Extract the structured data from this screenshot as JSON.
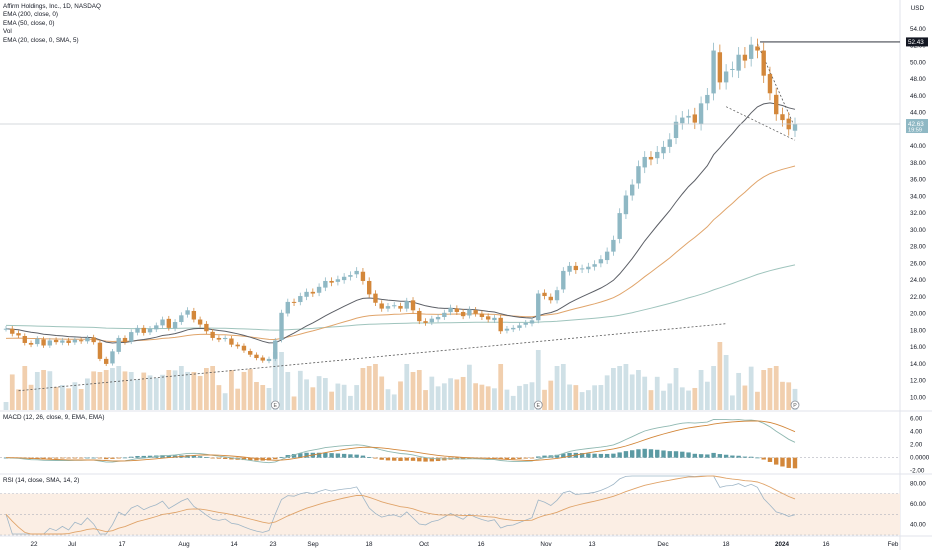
{
  "legend": {
    "title": "Affirm Holdings, Inc., 1D, NASDAQ",
    "line1": "EMA (200, close, 0)",
    "line2": "EMA (50, close, 0)",
    "line3": "Vol",
    "line4": "EMA (20, close, 0, SMA, 5)"
  },
  "currency": "USD",
  "macd_legend": "MACD (12, 26, close, 9, EMA, EMA)",
  "rsi_legend": "RSI (14, close, SMA, 14, 2)",
  "colors": {
    "up": "#8fb8c4",
    "down": "#d3873a",
    "ema20": "#5c5f66",
    "ema50": "#e0a46a",
    "ema200": "#9fc4bd",
    "rsi": "#e0a46a"
  },
  "chart_data": {
    "type": "candlestick",
    "ylim": [
      8.5,
      56
    ],
    "yticks": [
      "54.00",
      "52.00",
      "50.00",
      "48.00",
      "46.00",
      "44.00",
      "42.00",
      "40.00",
      "38.00",
      "36.00",
      "34.00",
      "32.00",
      "30.00",
      "28.00",
      "26.00",
      "24.00",
      "22.00",
      "20.00",
      "18.00",
      "16.00",
      "14.00",
      "12.00",
      "10.00"
    ],
    "xticks": [
      "22",
      "Jul",
      "17",
      "Aug",
      "14",
      "23",
      "Sep",
      "18",
      "Oct",
      "16",
      "Nov",
      "13",
      "Dec",
      "18",
      "2024",
      "16",
      "Feb"
    ],
    "price_labels": {
      "high_marker": "52.43",
      "last_price": "42.63",
      "countdown": "19:59"
    },
    "earnings_markers": [
      "E",
      "E",
      "P"
    ],
    "closes": [
      18.2,
      17.6,
      17.4,
      16.5,
      16.3,
      17.0,
      16.2,
      16.8,
      16.6,
      16.8,
      16.5,
      16.9,
      16.7,
      17.1,
      16.6,
      14.6,
      14.0,
      15.5,
      17.1,
      16.6,
      17.8,
      18.3,
      17.7,
      18.2,
      18.6,
      19.3,
      18.3,
      19.0,
      19.8,
      20.4,
      19.3,
      18.7,
      17.9,
      17.1,
      16.9,
      17.1,
      16.3,
      16.1,
      15.6,
      15.1,
      14.7,
      14.4,
      14.6,
      16.8,
      20.1,
      21.4,
      21.3,
      22.1,
      22.6,
      22.4,
      23.2,
      23.9,
      23.7,
      24.1,
      24.4,
      24.6,
      25.1,
      23.9,
      22.3,
      21.3,
      20.6,
      20.9,
      21.0,
      20.6,
      21.5,
      20.4,
      19.1,
      18.9,
      19.4,
      19.6,
      20.1,
      20.7,
      20.2,
      19.7,
      20.5,
      20.0,
      19.6,
      19.3,
      19.5,
      17.9,
      18.2,
      18.3,
      18.6,
      18.9,
      19.2,
      22.4,
      22.1,
      21.6,
      22.8,
      25.1,
      25.7,
      25.2,
      25.4,
      25.6,
      25.9,
      26.5,
      27.4,
      28.8,
      32.0,
      34.1,
      35.4,
      37.6,
      38.7,
      38.4,
      39.3,
      39.9,
      40.8,
      42.9,
      43.4,
      43.6,
      42.8,
      45.1,
      46.1,
      51.4,
      47.6,
      48.9,
      49.2,
      50.9,
      50.2,
      52.1,
      51.4,
      48.4,
      46.3,
      43.8,
      43.1,
      42.0,
      42.63
    ],
    "macd": {
      "ylim": [
        -2.2,
        7
      ],
      "yticks": [
        "6.00",
        "4.00",
        "2.00",
        "0.0000",
        "-2.00"
      ]
    },
    "rsi": {
      "ylim": [
        30,
        88
      ],
      "yticks": [
        "80.00",
        "60.00",
        "40.00"
      ],
      "upper": 70,
      "lower": 30
    }
  }
}
